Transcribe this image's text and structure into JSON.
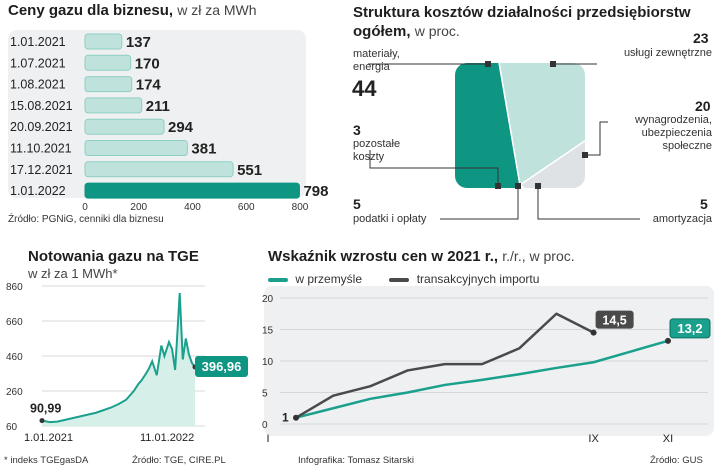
{
  "bar_section": {
    "title": "Ceny gazu dla biznesu,",
    "subtitle": "w zł za MWh",
    "source": "Źródło: PGNiG, cenniki dla biznesu",
    "colors": {
      "bar": "#bfe3dc",
      "highlight": "#0f9683",
      "panel": "#eef0f1"
    }
  },
  "pie_section": {
    "title": "Struktura kosztów działalności przedsiębiorstw",
    "title_line2": "ogółem,",
    "subtitle": "w proc.",
    "slices": [
      {
        "value": "44",
        "label_lines": [
          "materiały,",
          "energia"
        ]
      },
      {
        "value": "23",
        "label_lines": [
          "usługi zewnętrzne"
        ]
      },
      {
        "value": "20",
        "label_lines": [
          "wynagrodzenia,",
          "ubezpieczenia",
          "społeczne"
        ]
      },
      {
        "value": "5",
        "label_lines": [
          "amortyzacja"
        ]
      },
      {
        "value": "5",
        "label_lines": [
          "podatki i opłaty"
        ]
      },
      {
        "value": "3",
        "label_lines": [
          "pozostałe",
          "koszty"
        ]
      }
    ],
    "colors": {
      "main": "#0f9683",
      "light": "#bfe3dc",
      "grey": "#dfe2e4",
      "mid": "#9ed3c8"
    }
  },
  "tge_section": {
    "title": "Notowania gazu na TGE",
    "subtitle": "w zł za 1 MWh*",
    "start_label": "90,99",
    "end_label": "396,96",
    "footnote": "* indeks TGEgasDA",
    "source": "Źródło: TGE, CIRE.PL"
  },
  "line_section": {
    "title": "Wskaźnik wzrostu cen w 2021 r.,",
    "subtitle": "r./r., w proc.",
    "legend": [
      "w przemyśle",
      "transakcyjnych importu"
    ],
    "start_label": "1",
    "label_import": "14,5",
    "label_industry": "13,2",
    "credit": "Infografika: Tomasz Sitarski",
    "source": "Źródło: GUS",
    "colors": {
      "industry": "#1aa08d",
      "import": "#4a4a4a"
    }
  },
  "chart_data": [
    {
      "type": "bar",
      "title": "Ceny gazu dla biznesu, w zł za MWh",
      "orientation": "horizontal",
      "categories": [
        "1.01.2021",
        "1.07.2021",
        "1.08.2021",
        "15.08.2021",
        "20.09.2021",
        "11.10.2021",
        "17.12.2021",
        "1.01.2022"
      ],
      "values": [
        137,
        170,
        174,
        211,
        294,
        381,
        551,
        798
      ],
      "xlim": [
        0,
        800
      ],
      "xticks": [
        "0",
        "200",
        "400",
        "600",
        "800"
      ]
    },
    {
      "type": "pie",
      "title": "Struktura kosztów działalności przedsiębiorstw ogółem, w proc.",
      "categories": [
        "materiały, energia",
        "usługi zewnętrzne",
        "wynagrodzenia, ubezpieczenia społeczne",
        "amortyzacja",
        "podatki i opłaty",
        "pozostałe koszty"
      ],
      "values": [
        44,
        23,
        20,
        5,
        5,
        3
      ]
    },
    {
      "type": "area",
      "title": "Notowania gazu na TGE, w zł za 1 MWh*",
      "ylim": [
        60,
        860
      ],
      "yticks": [
        "860",
        "660",
        "460",
        "260",
        "60"
      ],
      "xticks": [
        "1.01.2021",
        "11.01.2022"
      ],
      "x": [
        0,
        0.05,
        0.1,
        0.15,
        0.2,
        0.25,
        0.3,
        0.35,
        0.4,
        0.45,
        0.5,
        0.55,
        0.58,
        0.6,
        0.63,
        0.65,
        0.68,
        0.7,
        0.72,
        0.75,
        0.78,
        0.8,
        0.83,
        0.85,
        0.87,
        0.88,
        0.9,
        0.92,
        0.94,
        0.96,
        0.98,
        1.0
      ],
      "values": [
        91,
        82,
        85,
        95,
        105,
        115,
        125,
        135,
        150,
        165,
        185,
        210,
        240,
        260,
        300,
        320,
        360,
        390,
        430,
        350,
        520,
        460,
        540,
        500,
        380,
        520,
        820,
        440,
        560,
        470,
        420,
        397
      ]
    },
    {
      "type": "line",
      "title": "Wskaźnik wzrostu cen w 2021 r., r./r., w proc.",
      "xticks": [
        "I",
        "IX",
        "XI"
      ],
      "yticks": [
        "0",
        "5",
        "10",
        "15",
        "20"
      ],
      "ylim": [
        0,
        20
      ],
      "xlim": [
        1,
        12
      ],
      "series": [
        {
          "name": "w przemyśle",
          "x": [
            1,
            2,
            3,
            4,
            5,
            6,
            7,
            8,
            9,
            10,
            11
          ],
          "values": [
            1,
            2.5,
            4,
            5,
            6.2,
            7,
            7.9,
            8.9,
            9.8,
            11.5,
            13.2
          ]
        },
        {
          "name": "transakcyjnych importu",
          "x": [
            1,
            2,
            3,
            4,
            5,
            6,
            7,
            8,
            9
          ],
          "values": [
            1,
            4.5,
            6,
            8.5,
            9.5,
            9.5,
            12,
            17.5,
            14.5
          ]
        }
      ]
    }
  ]
}
